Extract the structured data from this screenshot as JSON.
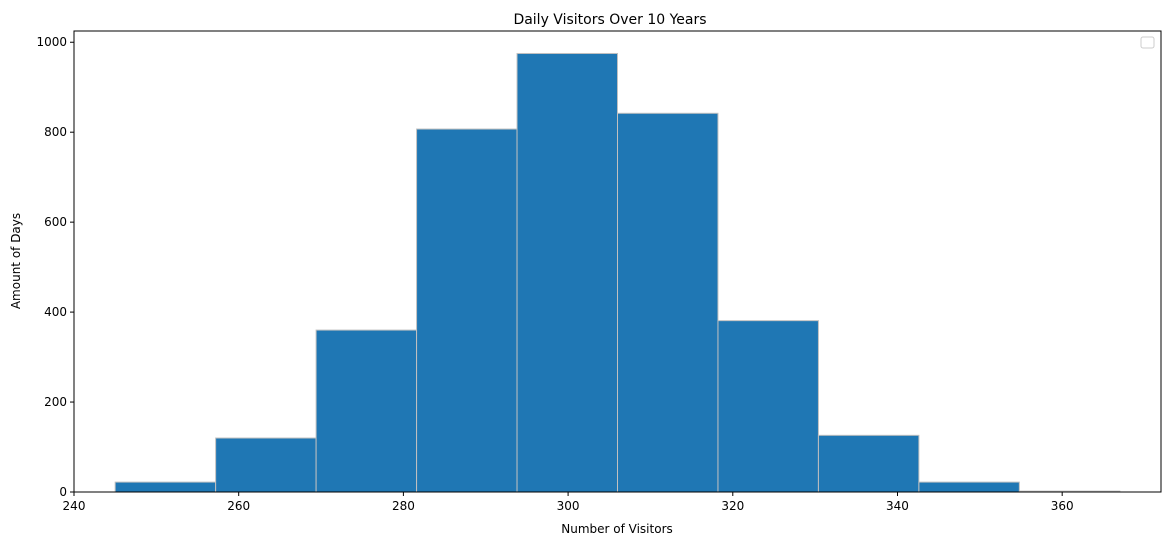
{
  "chart_data": {
    "type": "bar",
    "title": "Daily Visitors Over 10 Years",
    "xlabel": "Number of Visitors",
    "ylabel": "Amount of Days",
    "xlim": [
      240,
      372
    ],
    "ylim": [
      0,
      1025
    ],
    "x_ticks": [
      240,
      260,
      280,
      300,
      320,
      340,
      360
    ],
    "y_ticks": [
      0,
      200,
      400,
      600,
      800,
      1000
    ],
    "bins": [
      {
        "start": 245.0,
        "end": 257.2,
        "count": 22
      },
      {
        "start": 257.2,
        "end": 269.4,
        "count": 120
      },
      {
        "start": 269.4,
        "end": 281.6,
        "count": 360
      },
      {
        "start": 281.6,
        "end": 293.8,
        "count": 807
      },
      {
        "start": 293.8,
        "end": 306.0,
        "count": 975
      },
      {
        "start": 306.0,
        "end": 318.2,
        "count": 842
      },
      {
        "start": 318.2,
        "end": 330.4,
        "count": 381
      },
      {
        "start": 330.4,
        "end": 342.6,
        "count": 126
      },
      {
        "start": 342.6,
        "end": 354.8,
        "count": 22
      },
      {
        "start": 354.8,
        "end": 367.0,
        "count": 2
      }
    ],
    "bar_color": "#1f77b4",
    "edge_color": "#c0c0c0",
    "grid": false,
    "legend": {
      "placement": "top-right",
      "entries": []
    }
  }
}
